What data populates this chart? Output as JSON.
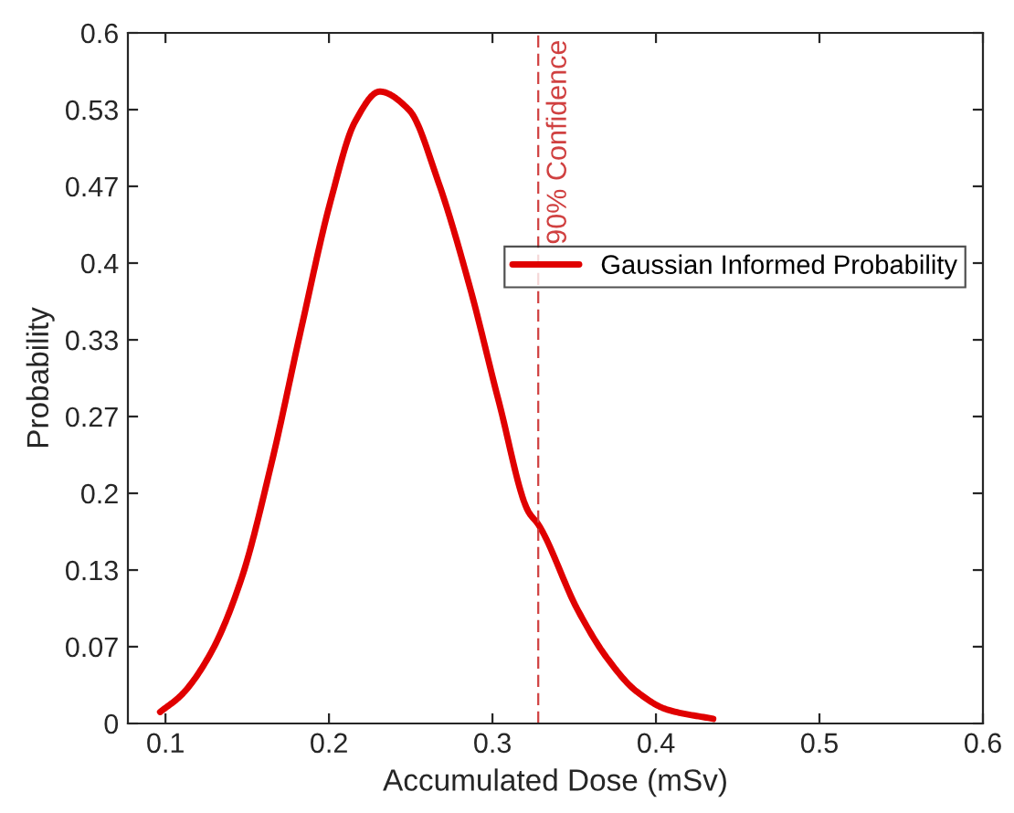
{
  "chart_data": {
    "type": "line",
    "xlabel": "Accumulated Dose (mSv)",
    "ylabel": "Probability",
    "xlim": [
      0.077,
      0.6
    ],
    "ylim": [
      0,
      0.6
    ],
    "xticks": [
      0.1,
      0.2,
      0.3,
      0.4,
      0.5,
      0.6
    ],
    "yticks": [
      0,
      {
        "value": 0.0667,
        "label": "0.07"
      },
      {
        "value": 0.1333,
        "label": "0.13"
      },
      0.2,
      {
        "value": 0.2667,
        "label": "0.27"
      },
      {
        "value": 0.3333,
        "label": "0.33"
      },
      0.4,
      {
        "value": 0.4667,
        "label": "0.47"
      },
      {
        "value": 0.5333,
        "label": "0.53"
      },
      0.6
    ],
    "grid": false,
    "legend": "top right",
    "marker": "none",
    "line_style": "solid",
    "series": [
      {
        "name": "Gaussian Informed Probability",
        "color": "#e00000",
        "x": [
          0.0967,
          0.1099,
          0.128,
          0.1465,
          0.165,
          0.183,
          0.201,
          0.216,
          0.231,
          0.249,
          0.267,
          0.286,
          0.304,
          0.322,
          0.328,
          0.352,
          0.37,
          0.388,
          0.407,
          0.435
        ],
        "values": [
          0.01,
          0.025,
          0.062,
          0.126,
          0.227,
          0.343,
          0.454,
          0.523,
          0.549,
          0.533,
          0.47,
          0.38,
          0.279,
          0.184,
          0.173,
          0.099,
          0.057,
          0.028,
          0.012,
          0.004
        ]
      }
    ],
    "ref_lines": [
      {
        "axis": "x",
        "value": 0.328,
        "label": "90% Confidence",
        "color": "#d04040",
        "line_style": "dashed"
      }
    ]
  }
}
